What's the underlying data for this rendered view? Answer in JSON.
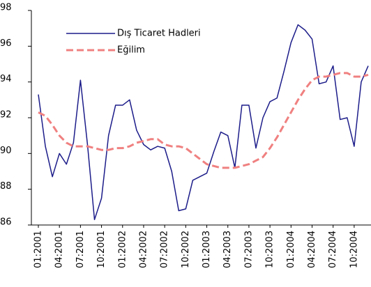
{
  "chart_data": {
    "type": "line",
    "categories": [
      "01:2001",
      null,
      null,
      "04:2001",
      null,
      null,
      "07:2001",
      null,
      null,
      "10:2001",
      null,
      null,
      "01:2002",
      null,
      null,
      "04:2002",
      null,
      null,
      "07:2002",
      null,
      null,
      "10:2002",
      null,
      null,
      "01:2003",
      null,
      null,
      "04:2003",
      null,
      null,
      "07:2003",
      null,
      null,
      "10:2003",
      null,
      null,
      "01:2004",
      null,
      null,
      "04:2004",
      null,
      null,
      "07:2004",
      null,
      null,
      "10:2004",
      null,
      null
    ],
    "series": [
      {
        "name": "Dış Ticaret Hadleri",
        "color": "#1c1c8a",
        "dash": false,
        "values": [
          93.3,
          90.4,
          88.7,
          90.0,
          89.4,
          90.6,
          94.1,
          90.5,
          86.3,
          87.5,
          91.0,
          92.7,
          92.7,
          93.0,
          91.3,
          90.5,
          90.2,
          90.4,
          90.3,
          89.0,
          86.8,
          86.9,
          88.5,
          88.7,
          88.9,
          90.1,
          91.2,
          91.0,
          89.2,
          92.7,
          92.7,
          90.3,
          92.0,
          92.9,
          93.1,
          94.6,
          96.2,
          97.2,
          96.9,
          96.4,
          93.9,
          94.0,
          94.9,
          91.9,
          92.0,
          90.4,
          94.0,
          94.9
        ]
      },
      {
        "name": "Eğilim",
        "color": "#f08080",
        "dash": true,
        "values": [
          92.3,
          92.1,
          91.6,
          91.0,
          90.6,
          90.4,
          90.4,
          90.4,
          90.3,
          90.2,
          90.2,
          90.3,
          90.3,
          90.4,
          90.6,
          90.7,
          90.8,
          90.8,
          90.5,
          90.4,
          90.4,
          90.3,
          90.0,
          89.7,
          89.4,
          89.3,
          89.2,
          89.2,
          89.2,
          89.3,
          89.4,
          89.6,
          89.8,
          90.3,
          90.9,
          91.6,
          92.3,
          93.0,
          93.6,
          94.1,
          94.3,
          94.3,
          94.4,
          94.5,
          94.5,
          94.3,
          94.3,
          94.4
        ]
      }
    ],
    "ylim": [
      86,
      98
    ],
    "yticks": [
      86,
      88,
      90,
      92,
      94,
      96,
      98
    ],
    "grid": false,
    "legend": "upper left"
  }
}
